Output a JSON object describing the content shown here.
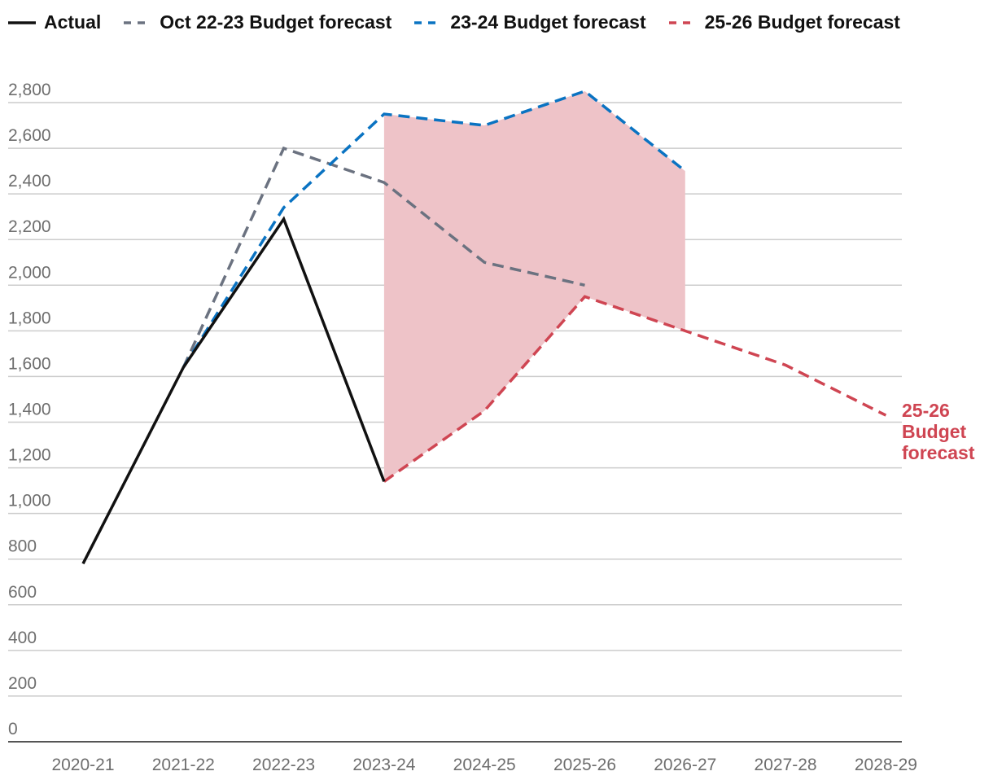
{
  "colors": {
    "actual": "#111111",
    "oct2223": "#6b7280",
    "b2324": "#0a73c2",
    "b2526": "#cf4552",
    "band": "#eec3c8",
    "grid": "#cccccc",
    "axis": "#555555"
  },
  "legend": [
    {
      "label": "Actual",
      "key": "actual",
      "style": "solid"
    },
    {
      "label": "Oct 22-23 Budget forecast",
      "key": "oct2223",
      "style": "dashed"
    },
    {
      "label": "23-24 Budget forecast",
      "key": "b2324",
      "style": "dashed"
    },
    {
      "label": "25-26 Budget forecast",
      "key": "b2526",
      "style": "dashed"
    }
  ],
  "chart_data": {
    "type": "line",
    "title": "",
    "xlabel": "",
    "ylabel": "",
    "categories": [
      "2020-21",
      "2021-22",
      "2022-23",
      "2023-24",
      "2024-25",
      "2025-26",
      "2026-27",
      "2027-28",
      "2028-29"
    ],
    "ylim": [
      0,
      2800
    ],
    "yticks": [
      0,
      200,
      400,
      600,
      800,
      1000,
      1200,
      1400,
      1600,
      1800,
      2000,
      2200,
      2400,
      2600,
      2800
    ],
    "ytick_labels": [
      "0",
      "200",
      "400",
      "600",
      "800",
      "1,000",
      "1,200",
      "1,400",
      "1,600",
      "1,800",
      "2,000",
      "2,200",
      "2,400",
      "2,600",
      "2,800"
    ],
    "grid": true,
    "series": [
      {
        "name": "Actual",
        "key": "actual",
        "style": "solid",
        "x": [
          "2020-21",
          "2021-22",
          "2022-23",
          "2023-24"
        ],
        "values": [
          780,
          1640,
          2290,
          1140
        ]
      },
      {
        "name": "Oct 22-23 Budget forecast",
        "key": "oct2223",
        "style": "dashed",
        "x": [
          "2021-22",
          "2022-23",
          "2023-24",
          "2024-25",
          "2025-26"
        ],
        "values": [
          1640,
          2600,
          2450,
          2100,
          2000
        ]
      },
      {
        "name": "23-24 Budget forecast",
        "key": "b2324",
        "style": "dashed",
        "x": [
          "2021-22",
          "2022-23",
          "2023-24",
          "2024-25",
          "2025-26",
          "2026-27"
        ],
        "values": [
          1640,
          2340,
          2750,
          2700,
          2850,
          2500
        ]
      },
      {
        "name": "25-26 Budget forecast",
        "key": "b2526",
        "style": "dashed",
        "x": [
          "2023-24",
          "2024-25",
          "2025-26",
          "2026-27",
          "2027-28",
          "2028-29"
        ],
        "values": [
          1140,
          1450,
          1950,
          1800,
          1650,
          1430
        ]
      }
    ],
    "shaded_band": {
      "between": [
        "23-24 Budget forecast",
        "25-26 Budget forecast"
      ],
      "x": [
        "2023-24",
        "2024-25",
        "2025-26",
        "2026-27"
      ],
      "upper": [
        2750,
        2700,
        2850,
        2500
      ],
      "lower": [
        1140,
        1450,
        1950,
        1800
      ]
    },
    "annotations": [
      {
        "lines": [
          "25-26",
          "Budget",
          "forecast"
        ],
        "series": "25-26 Budget forecast"
      }
    ]
  }
}
